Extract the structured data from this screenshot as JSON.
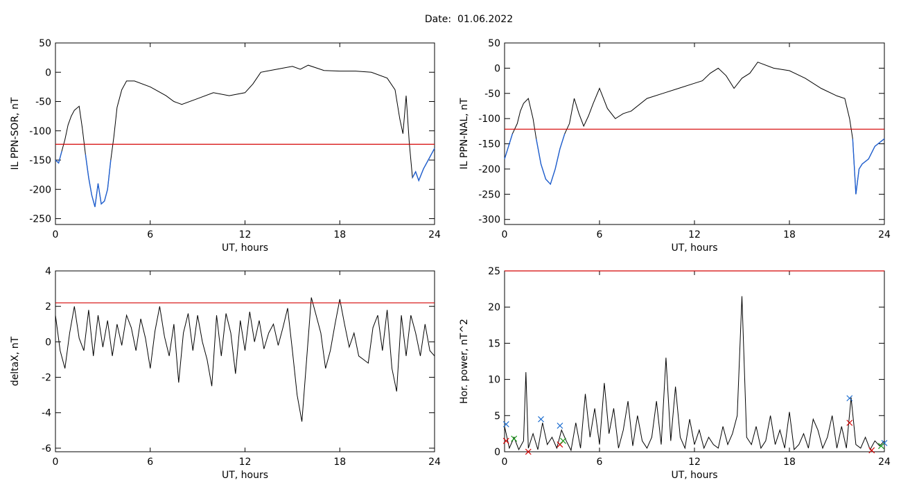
{
  "header": {
    "date_label": "Date:  01.06.2022"
  },
  "colors": {
    "line": "#000000",
    "threshold": "#d40000",
    "highlight": "#1f5fd0",
    "marker_blue": "#1f6fd0",
    "marker_red": "#d40000",
    "marker_green": "#1a9a1a"
  },
  "chart_data": [
    {
      "id": "ppn-sor",
      "type": "line",
      "title": "",
      "xlabel": "UT, hours",
      "ylabel": "IL PPN-SOR, nT",
      "xlim": [
        0,
        24
      ],
      "ylim": [
        -260,
        50
      ],
      "xticks": [
        0,
        6,
        12,
        18,
        24
      ],
      "yticks": [
        50,
        0,
        -50,
        -100,
        -150,
        -200,
        -250
      ],
      "threshold": -123,
      "series": [
        {
          "x": [
            0,
            0.2,
            0.4,
            0.6,
            0.8,
            1.0,
            1.2,
            1.5,
            1.7,
            1.9,
            2.1,
            2.3,
            2.5,
            2.7,
            2.9,
            3.1,
            3.3,
            3.5,
            3.7,
            3.9,
            4.2,
            4.5,
            5.0,
            6.0,
            7.0,
            7.5,
            8.0,
            9.0,
            10.0,
            11.0,
            12.0,
            12.5,
            13.0,
            14.0,
            15.0,
            15.5,
            16.0,
            17.0,
            18.0,
            19.0,
            20.0,
            21.0,
            21.5,
            21.8,
            22.0,
            22.2,
            22.4,
            22.6,
            22.8,
            23.0,
            23.3,
            23.6,
            24.0
          ],
          "y": [
            -150,
            -155,
            -135,
            -115,
            -90,
            -75,
            -65,
            -58,
            -95,
            -140,
            -180,
            -210,
            -230,
            -190,
            -225,
            -220,
            -200,
            -150,
            -110,
            -60,
            -30,
            -15,
            -15,
            -25,
            -40,
            -50,
            -55,
            -45,
            -35,
            -40,
            -35,
            -20,
            0,
            5,
            10,
            5,
            12,
            3,
            2,
            2,
            0,
            -10,
            -30,
            -80,
            -105,
            -40,
            -120,
            -180,
            -170,
            -185,
            -165,
            -150,
            -130
          ]
        }
      ]
    },
    {
      "id": "ppn-nal",
      "type": "line",
      "title": "",
      "xlabel": "UT, hours",
      "ylabel": "IL PPN-NAL, nT",
      "xlim": [
        0,
        24
      ],
      "ylim": [
        -310,
        50
      ],
      "xticks": [
        0,
        6,
        12,
        18,
        24
      ],
      "yticks": [
        50,
        0,
        -50,
        -100,
        -150,
        -200,
        -250,
        -300
      ],
      "threshold": -121,
      "series": [
        {
          "x": [
            0,
            0.2,
            0.5,
            0.8,
            1.0,
            1.2,
            1.5,
            1.8,
            2.0,
            2.3,
            2.6,
            2.9,
            3.2,
            3.5,
            3.8,
            4.1,
            4.4,
            4.7,
            5.0,
            5.3,
            5.6,
            6.0,
            6.5,
            7.0,
            7.5,
            8.0,
            9.0,
            10.0,
            11.0,
            12.0,
            12.5,
            13.0,
            13.5,
            14.0,
            14.5,
            15.0,
            15.5,
            16.0,
            17.0,
            18.0,
            19.0,
            20.0,
            21.0,
            21.5,
            21.8,
            22.0,
            22.2,
            22.4,
            22.6,
            23.0,
            23.4,
            24.0
          ],
          "y": [
            -180,
            -160,
            -130,
            -110,
            -85,
            -70,
            -60,
            -100,
            -140,
            -190,
            -220,
            -230,
            -200,
            -160,
            -130,
            -110,
            -60,
            -90,
            -115,
            -95,
            -70,
            -40,
            -80,
            -100,
            -90,
            -85,
            -60,
            -50,
            -40,
            -30,
            -25,
            -10,
            0,
            -15,
            -40,
            -20,
            -10,
            12,
            0,
            -5,
            -20,
            -40,
            -55,
            -60,
            -100,
            -140,
            -250,
            -200,
            -190,
            -180,
            -155,
            -140
          ]
        }
      ]
    },
    {
      "id": "deltax",
      "type": "line",
      "title": "",
      "xlabel": "UT, hours",
      "ylabel": "deltaX, nT",
      "xlim": [
        0,
        24
      ],
      "ylim": [
        -6.2,
        4
      ],
      "xticks": [
        0,
        6,
        12,
        18,
        24
      ],
      "yticks": [
        4,
        2,
        0,
        -2,
        -4,
        -6
      ],
      "threshold": 2.2,
      "series": [
        {
          "x": [
            0,
            0.3,
            0.6,
            0.9,
            1.2,
            1.5,
            1.8,
            2.1,
            2.4,
            2.7,
            3.0,
            3.3,
            3.6,
            3.9,
            4.2,
            4.5,
            4.8,
            5.1,
            5.4,
            5.7,
            6.0,
            6.3,
            6.6,
            6.9,
            7.2,
            7.5,
            7.8,
            8.1,
            8.4,
            8.7,
            9.0,
            9.3,
            9.6,
            9.9,
            10.2,
            10.5,
            10.8,
            11.1,
            11.4,
            11.7,
            12.0,
            12.3,
            12.6,
            12.9,
            13.2,
            13.5,
            13.8,
            14.1,
            14.4,
            14.7,
            15.0,
            15.3,
            15.6,
            15.9,
            16.2,
            16.5,
            16.8,
            17.1,
            17.4,
            17.7,
            18.0,
            18.3,
            18.6,
            18.9,
            19.2,
            19.5,
            19.8,
            20.1,
            20.4,
            20.7,
            21.0,
            21.3,
            21.6,
            21.9,
            22.2,
            22.5,
            22.8,
            23.1,
            23.4,
            23.7,
            24.0
          ],
          "y": [
            1.5,
            -0.5,
            -1.5,
            0.5,
            2.0,
            0.2,
            -0.5,
            1.8,
            -0.8,
            1.5,
            -0.3,
            1.2,
            -0.8,
            1.0,
            -0.2,
            1.5,
            0.8,
            -0.5,
            1.3,
            0.2,
            -1.5,
            0.6,
            2.0,
            0.3,
            -0.8,
            1.0,
            -2.3,
            0.5,
            1.6,
            -0.5,
            1.5,
            0.0,
            -1.0,
            -2.5,
            1.5,
            -0.8,
            1.6,
            0.5,
            -1.8,
            1.2,
            -0.5,
            1.7,
            0.0,
            1.2,
            -0.4,
            0.5,
            1.0,
            -0.2,
            0.8,
            1.9,
            -0.5,
            -3.0,
            -4.5,
            -1.0,
            2.5,
            1.5,
            0.5,
            -1.5,
            -0.5,
            1.0,
            2.4,
            1.0,
            -0.3,
            0.5,
            -0.8,
            -1.0,
            -1.2,
            0.8,
            1.5,
            -0.5,
            1.8,
            -1.5,
            -2.8,
            1.5,
            -0.8,
            1.5,
            0.5,
            -0.8,
            1.0,
            -0.5,
            -0.8
          ]
        }
      ]
    },
    {
      "id": "hor-power",
      "type": "line",
      "title": "",
      "xlabel": "UT, hours",
      "ylabel": "Hor. power, nT^2",
      "xlim": [
        0,
        24
      ],
      "ylim": [
        0,
        25
      ],
      "xticks": [
        0,
        6,
        12,
        18,
        24
      ],
      "yticks": [
        25,
        20,
        15,
        10,
        5,
        0
      ],
      "threshold": 25,
      "series": [
        {
          "x": [
            0,
            0.3,
            0.6,
            0.9,
            1.2,
            1.35,
            1.5,
            1.8,
            2.1,
            2.4,
            2.7,
            3.0,
            3.3,
            3.6,
            3.9,
            4.2,
            4.5,
            4.8,
            5.1,
            5.4,
            5.7,
            6.0,
            6.3,
            6.6,
            6.9,
            7.2,
            7.5,
            7.8,
            8.1,
            8.4,
            8.7,
            9.0,
            9.3,
            9.6,
            9.9,
            10.2,
            10.5,
            10.8,
            11.1,
            11.4,
            11.7,
            12.0,
            12.3,
            12.6,
            12.9,
            13.2,
            13.5,
            13.8,
            14.1,
            14.4,
            14.7,
            15.0,
            15.3,
            15.6,
            15.9,
            16.2,
            16.5,
            16.8,
            17.1,
            17.4,
            17.7,
            18.0,
            18.3,
            18.6,
            18.9,
            19.2,
            19.5,
            19.8,
            20.1,
            20.4,
            20.7,
            21.0,
            21.3,
            21.6,
            21.9,
            22.2,
            22.5,
            22.8,
            23.1,
            23.4,
            23.7,
            24.0
          ],
          "y": [
            3.5,
            0.5,
            2.0,
            0.3,
            1.5,
            11.0,
            0.5,
            2.5,
            0.3,
            4.0,
            1.0,
            2.0,
            0.5,
            3.0,
            1.5,
            0.2,
            4.0,
            0.5,
            8.0,
            2.0,
            6.0,
            1.0,
            9.5,
            2.5,
            6.0,
            0.5,
            3.0,
            7.0,
            0.8,
            5.0,
            1.5,
            0.5,
            2.0,
            7.0,
            1.0,
            13.0,
            1.5,
            9.0,
            2.0,
            0.5,
            4.5,
            1.0,
            3.0,
            0.5,
            2.0,
            1.0,
            0.5,
            3.5,
            1.0,
            2.5,
            5.0,
            21.5,
            2.0,
            1.0,
            3.5,
            0.5,
            1.5,
            5.0,
            1.0,
            3.0,
            0.5,
            5.5,
            0.3,
            1.0,
            2.5,
            0.5,
            4.5,
            3.0,
            0.5,
            2.0,
            5.0,
            0.5,
            3.5,
            0.5,
            7.5,
            1.0,
            0.5,
            2.0,
            0.3,
            1.5,
            0.8,
            1.5
          ]
        }
      ],
      "markers": [
        {
          "shape": "x",
          "color": "blue",
          "points": [
            [
              0.1,
              3.8
            ],
            [
              2.3,
              4.5
            ],
            [
              3.5,
              3.6
            ],
            [
              21.8,
              7.4
            ],
            [
              24.0,
              1.2
            ]
          ]
        },
        {
          "shape": "x",
          "color": "red",
          "points": [
            [
              0.1,
              1.5
            ],
            [
              1.5,
              0.0
            ],
            [
              3.5,
              1.0
            ],
            [
              21.8,
              4.0
            ],
            [
              23.2,
              0.2
            ]
          ]
        },
        {
          "shape": "x",
          "color": "green",
          "points": [
            [
              0.6,
              1.8
            ],
            [
              3.7,
              1.5
            ],
            [
              23.8,
              0.8
            ]
          ]
        }
      ]
    }
  ]
}
